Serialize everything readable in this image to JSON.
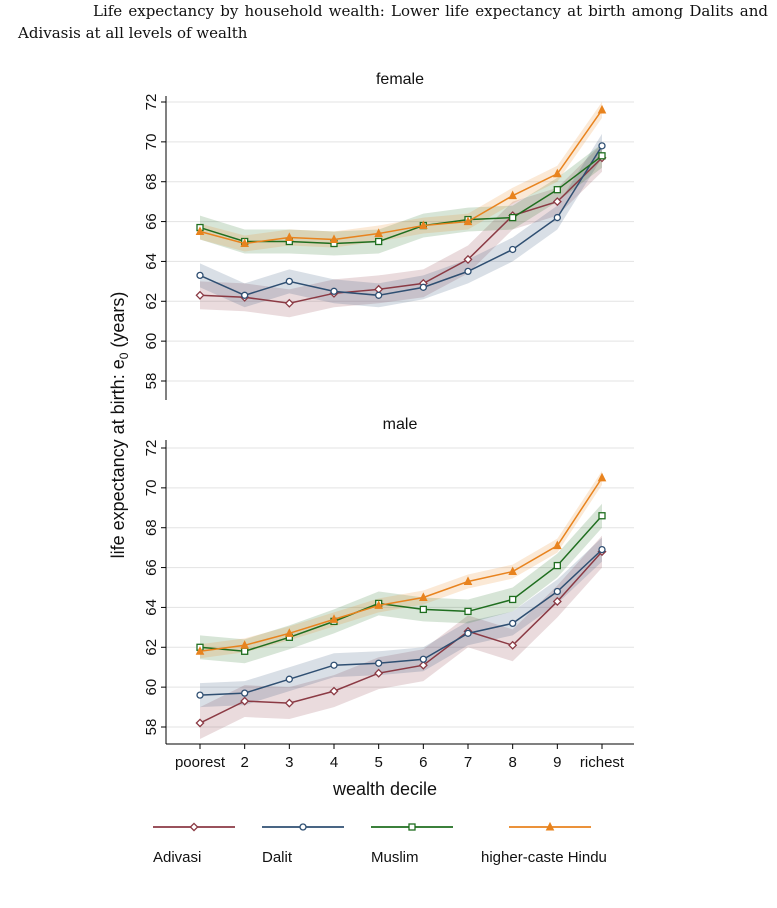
{
  "caption": "Life expectancy by household wealth: Lower life expectancy at birth among Dalits and Adivasis at all levels of wealth",
  "chart_data": {
    "type": "line",
    "ylabel_main": "life expectancy at birth: e",
    "ylabel_sub": "0",
    "ylabel_tail": " (years)",
    "xlabel": "wealth decile",
    "x_categories": [
      "poorest",
      "2",
      "3",
      "4",
      "5",
      "6",
      "7",
      "8",
      "9",
      "richest"
    ],
    "y_ticks": [
      58,
      60,
      62,
      64,
      66,
      68,
      70,
      72
    ],
    "ylim": [
      57,
      73
    ],
    "grid": true,
    "legend_placement": "bottom",
    "confidence_bands": true,
    "series_style": [
      {
        "name": "Adivasi",
        "color": "#8b3a44",
        "marker": "diamond"
      },
      {
        "name": "Dalit",
        "color": "#2f4f72",
        "marker": "circle"
      },
      {
        "name": "Muslim",
        "color": "#1f6e1f",
        "marker": "square"
      },
      {
        "name": "higher-caste Hindu",
        "color": "#e8831e",
        "marker": "triangle"
      }
    ],
    "panels": [
      {
        "title": "female",
        "series": [
          {
            "name": "Adivasi",
            "values": [
              62.3,
              62.2,
              61.9,
              62.4,
              62.6,
              62.9,
              64.1,
              66.3,
              67.0,
              69.2
            ],
            "band": 0.7
          },
          {
            "name": "Dalit",
            "values": [
              63.3,
              62.3,
              63.0,
              62.5,
              62.3,
              62.7,
              63.5,
              64.6,
              66.2,
              69.8
            ],
            "band": 0.6
          },
          {
            "name": "Muslim",
            "values": [
              65.7,
              65.0,
              65.0,
              64.9,
              65.0,
              65.8,
              66.1,
              66.2,
              67.6,
              69.3
            ],
            "band": 0.6
          },
          {
            "name": "higher-caste Hindu",
            "values": [
              65.5,
              64.9,
              65.2,
              65.1,
              65.4,
              65.8,
              66.0,
              67.3,
              68.4,
              71.6
            ],
            "band": 0.4
          }
        ]
      },
      {
        "title": "male",
        "series": [
          {
            "name": "Adivasi",
            "values": [
              58.2,
              59.3,
              59.2,
              59.8,
              60.7,
              61.1,
              62.8,
              62.1,
              64.3,
              66.8
            ],
            "band": 0.8
          },
          {
            "name": "Dalit",
            "values": [
              59.6,
              59.7,
              60.4,
              61.1,
              61.2,
              61.4,
              62.7,
              63.2,
              64.8,
              66.9
            ],
            "band": 0.6
          },
          {
            "name": "Muslim",
            "values": [
              62.0,
              61.8,
              62.5,
              63.3,
              64.2,
              63.9,
              63.8,
              64.4,
              66.1,
              68.6
            ],
            "band": 0.6
          },
          {
            "name": "higher-caste Hindu",
            "values": [
              61.8,
              62.1,
              62.7,
              63.4,
              64.1,
              64.5,
              65.3,
              65.8,
              67.1,
              70.5
            ],
            "band": 0.35
          }
        ]
      }
    ]
  }
}
